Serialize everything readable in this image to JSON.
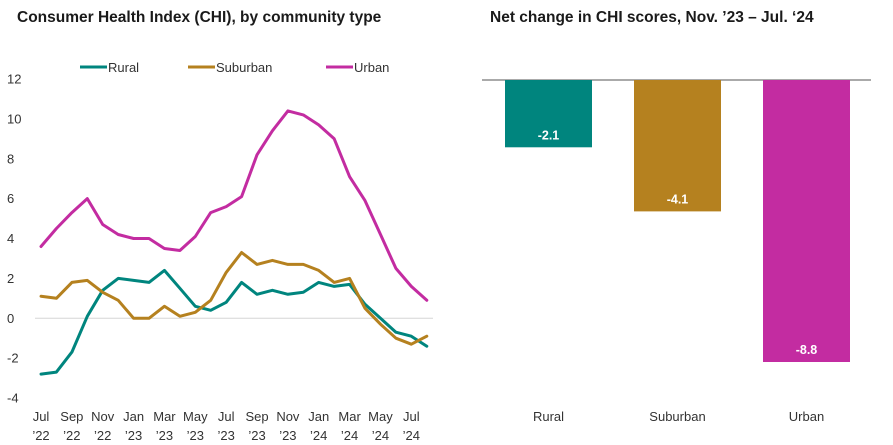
{
  "colors": {
    "Rural": "#00857e",
    "Suburban": "#b5811f",
    "Urban": "#c32ca1"
  },
  "chart_data": [
    {
      "type": "line",
      "title": "Consumer Health Index (CHI), by community type",
      "ylim": [
        -4,
        12
      ],
      "yticks": [
        "12",
        "10",
        "8",
        "6",
        "4",
        "2",
        "0",
        "-2",
        "-4"
      ],
      "ytick_values": [
        12,
        10,
        8,
        6,
        4,
        2,
        0,
        -2,
        -4
      ],
      "x": [
        "Jul '22",
        "Aug '22",
        "Sep '22",
        "Oct '22",
        "Nov '22",
        "Dec '22",
        "Jan '23",
        "Feb '23",
        "Mar '23",
        "Apr '23",
        "May '23",
        "Jun '23",
        "Jul '23",
        "Aug '23",
        "Sep '23",
        "Oct '23",
        "Nov '23",
        "Dec '23",
        "Jan '24",
        "Feb '24",
        "Mar '24",
        "Apr '24",
        "May '24",
        "Jun '24",
        "Jul '24",
        "Aug '24"
      ],
      "xtick_labels": [
        {
          "idx": 0,
          "month": "Jul",
          "year": "’22"
        },
        {
          "idx": 2,
          "month": "Sep",
          "year": "’22"
        },
        {
          "idx": 4,
          "month": "Nov",
          "year": "’22"
        },
        {
          "idx": 6,
          "month": "Jan",
          "year": "’23"
        },
        {
          "idx": 8,
          "month": "Mar",
          "year": "’23"
        },
        {
          "idx": 10,
          "month": "May",
          "year": "’23"
        },
        {
          "idx": 12,
          "month": "Jul",
          "year": "’23"
        },
        {
          "idx": 14,
          "month": "Sep",
          "year": "’23"
        },
        {
          "idx": 16,
          "month": "Nov",
          "year": "’23"
        },
        {
          "idx": 18,
          "month": "Jan",
          "year": "’24"
        },
        {
          "idx": 20,
          "month": "Mar",
          "year": "’24"
        },
        {
          "idx": 22,
          "month": "May",
          "year": "’24"
        },
        {
          "idx": 24,
          "month": "Jul",
          "year": "’24"
        }
      ],
      "legend": "top",
      "grid": "zero-line only",
      "series": [
        {
          "name": "Rural",
          "values": [
            -2.8,
            -2.7,
            -1.7,
            0.1,
            1.4,
            2.0,
            1.9,
            1.8,
            2.4,
            1.5,
            0.6,
            0.4,
            0.8,
            1.8,
            1.2,
            1.4,
            1.2,
            1.3,
            1.8,
            1.6,
            1.7,
            0.7,
            0.0,
            -0.7,
            -0.9,
            -1.4
          ]
        },
        {
          "name": "Suburban",
          "values": [
            1.1,
            1.0,
            1.8,
            1.9,
            1.3,
            0.9,
            0.0,
            0.0,
            0.6,
            0.1,
            0.3,
            0.9,
            2.3,
            3.3,
            2.7,
            2.9,
            2.7,
            2.7,
            2.4,
            1.8,
            2.0,
            0.5,
            -0.3,
            -1.0,
            -1.3,
            -0.9
          ]
        },
        {
          "name": "Urban",
          "values": [
            3.6,
            4.5,
            5.3,
            6.0,
            4.7,
            4.2,
            4.0,
            4.0,
            3.5,
            3.4,
            4.1,
            5.3,
            5.6,
            6.1,
            8.2,
            9.4,
            10.4,
            10.2,
            9.7,
            9.0,
            7.1,
            5.9,
            4.2,
            2.5,
            1.6,
            0.9
          ]
        }
      ]
    },
    {
      "type": "bar",
      "title": "Net change in CHI scores, Nov. ’23 – Jul. ‘24",
      "categories": [
        "Rural",
        "Suburban",
        "Urban"
      ],
      "values": [
        -2.1,
        -4.1,
        -8.8
      ],
      "value_labels": [
        "-2.1",
        "-4.1",
        "-8.8"
      ],
      "ylim": [
        -8.8,
        0
      ]
    }
  ]
}
